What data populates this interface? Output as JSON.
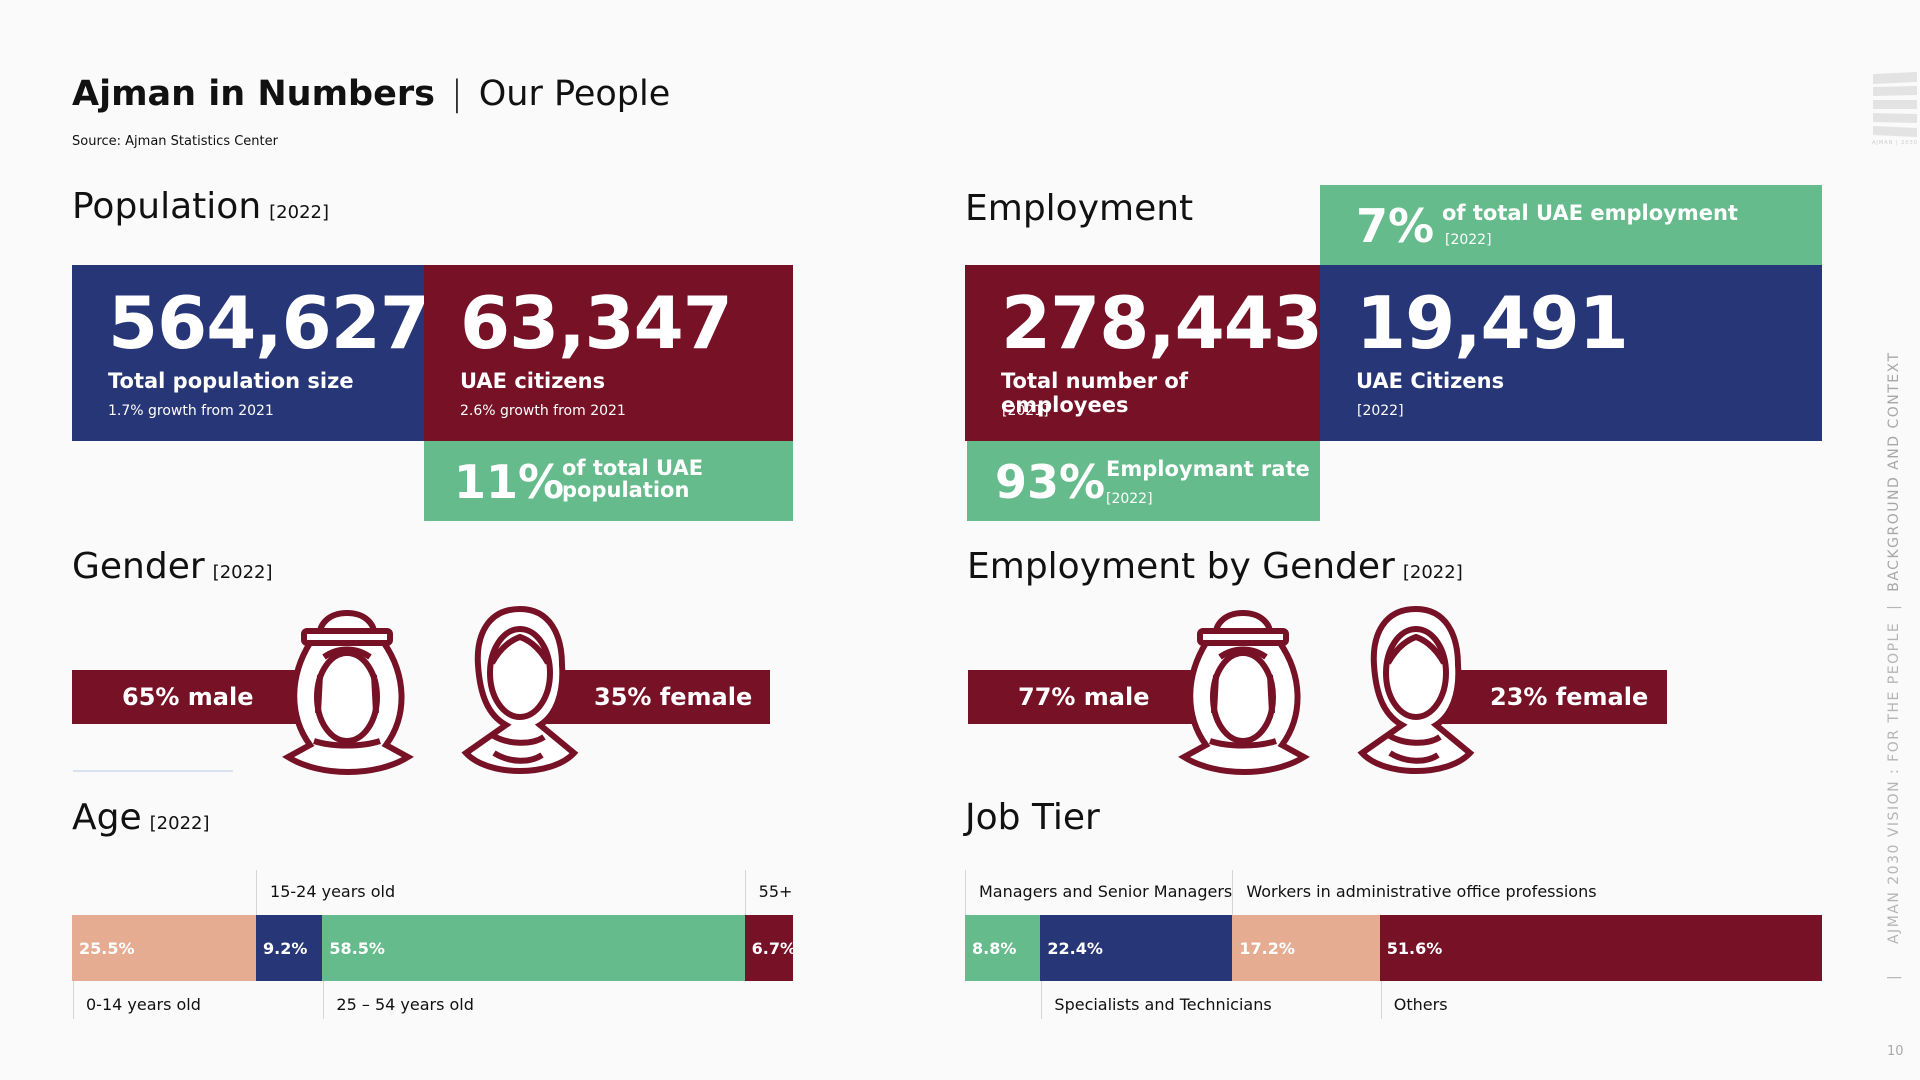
{
  "header": {
    "title_bold": "Ajman in Numbers",
    "separator": "|",
    "title_light": "Our People",
    "source": "Source: Ajman Statistics Center"
  },
  "colors": {
    "blue": "#273677",
    "maroon": "#761126",
    "green": "#66bb8c",
    "peach": "#e6ac92"
  },
  "population": {
    "heading": "Population",
    "year": "[2022]",
    "total": {
      "value": "564,627",
      "label": "Total population size",
      "note": "1.7% growth from 2021"
    },
    "citizens": {
      "value": "63,347",
      "label": "UAE citizens",
      "note": "2.6% growth from 2021"
    },
    "share": {
      "value": "11%",
      "label_line1": "of total UAE",
      "label_line2": "population"
    }
  },
  "employment": {
    "heading": "Employment",
    "share": {
      "value": "7%",
      "label": "of total UAE employment",
      "year": "[2022]"
    },
    "total": {
      "value": "278,443",
      "label": "Total number of employees",
      "year": "[2021]"
    },
    "citizens": {
      "value": "19,491",
      "label": "UAE Citizens",
      "year": "[2022]"
    },
    "rate": {
      "value": "93%",
      "label": "Employmant rate",
      "year": "[2022]"
    }
  },
  "gender": {
    "heading": "Gender",
    "year": "[2022]",
    "male": "65% male",
    "female": "35% female",
    "male_icon": "arab-man-icon",
    "female_icon": "hijab-woman-icon"
  },
  "employment_gender": {
    "heading": "Employment by Gender",
    "year": "[2022]",
    "male": "77% male",
    "female": "23% female"
  },
  "chart_data": [
    {
      "type": "bar",
      "title": "Age",
      "subtitle": "[2022]",
      "orientation": "stacked-horizontal",
      "categories": [
        "0-14 years old",
        "15-24 years old",
        "25 – 54 years old",
        "55+"
      ],
      "values": [
        25.5,
        9.2,
        58.5,
        6.7
      ],
      "labels": [
        "25.5%",
        "9.2%",
        "58.5%",
        "6.7%"
      ],
      "colors": [
        "#e6ac92",
        "#273677",
        "#66bb8c",
        "#761126"
      ],
      "label_positions": [
        "below",
        "above",
        "below",
        "above"
      ],
      "unit": "%"
    },
    {
      "type": "bar",
      "title": "Job Tier",
      "orientation": "stacked-horizontal",
      "categories": [
        "Managers and Senior Managers",
        "Specialists and Technicians",
        "Workers in administrative office professions",
        "Others"
      ],
      "values": [
        8.8,
        22.4,
        17.2,
        51.6
      ],
      "labels": [
        "8.8%",
        "22.4%",
        "17.2%",
        "51.6%"
      ],
      "colors": [
        "#66bb8c",
        "#273677",
        "#e6ac92",
        "#761126"
      ],
      "label_positions": [
        "above",
        "below",
        "above",
        "below"
      ],
      "unit": "%"
    }
  ],
  "sidebar": {
    "vertical_text_1": "AJMAN 2030 VISION : FOR THE PEOPLE",
    "vertical_sep": "|",
    "vertical_text_2": "BACKGROUND AND CONTEXT",
    "page_number": "10",
    "logo_text": "AJMAN | 2030"
  }
}
